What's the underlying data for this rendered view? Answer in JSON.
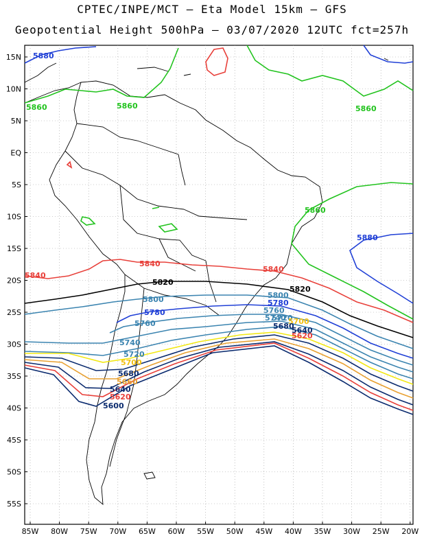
{
  "title_line1": "CPTEC/INPE/MCT –  Eta Model 15km – GFS",
  "title_line2": "Geopotential Height 500hPa – 03/07/2020 12UTC fct=257h",
  "lat_ticks": [
    "15N",
    "10N",
    "5N",
    "EQ",
    "5S",
    "10S",
    "15S",
    "20S",
    "25S",
    "30S",
    "35S",
    "40S",
    "45S",
    "50S",
    "55S"
  ],
  "lon_ticks": [
    "85W",
    "80W",
    "75W",
    "70W",
    "65W",
    "60W",
    "55W",
    "50W",
    "45W",
    "40W",
    "35W",
    "30W",
    "25W",
    "20W"
  ],
  "contour_levels": [
    {
      "value": "5880",
      "color": "#1f3fd6"
    },
    {
      "value": "5860",
      "color": "#22c31e"
    },
    {
      "value": "5840",
      "color": "#e8403a"
    },
    {
      "value": "5820",
      "color": "#000000"
    },
    {
      "value": "5800",
      "color": "#3b84b0"
    },
    {
      "value": "5780",
      "color": "#1f3fd6"
    },
    {
      "value": "5760",
      "color": "#3b84b0"
    },
    {
      "value": "5740",
      "color": "#3b84b0"
    },
    {
      "value": "5720",
      "color": "#3b84b0"
    },
    {
      "value": "5700",
      "color": "#f2e812"
    },
    {
      "value": "5680",
      "color": "#0a2a6e"
    },
    {
      "value": "5660",
      "color": "#e8a030"
    },
    {
      "value": "5640",
      "color": "#0a2a6e"
    },
    {
      "value": "5620",
      "color": "#e8403a"
    },
    {
      "value": "5600",
      "color": "#0a2a6e"
    }
  ],
  "labels": {
    "l5880a": "5880",
    "l5860a": "5860",
    "l5860b": "5860",
    "l5860c": "5860",
    "l5860d": "5860",
    "l5880b": "5880",
    "l5840a": "5840",
    "l5840b": "5840",
    "l5840c": "5840",
    "l5820a": "5820",
    "l5820b": "5820",
    "l5800a": "5800",
    "l5800b": "5800",
    "l5780a": "5780",
    "l5780b": "5780",
    "l5760a": "5760",
    "l5760b": "5760",
    "l5740a": "5740",
    "l5740b": "5740",
    "l5720a": "5720",
    "l5720b": "5720",
    "l5700a": "5700",
    "l5700b": "5700",
    "l5680a": "5680",
    "l5680b": "5680",
    "l5660a": "5660",
    "l5640a": "5640",
    "l5640b": "5640",
    "l5620a": "5620",
    "l5620b": "5620",
    "l5600a": "5600"
  }
}
